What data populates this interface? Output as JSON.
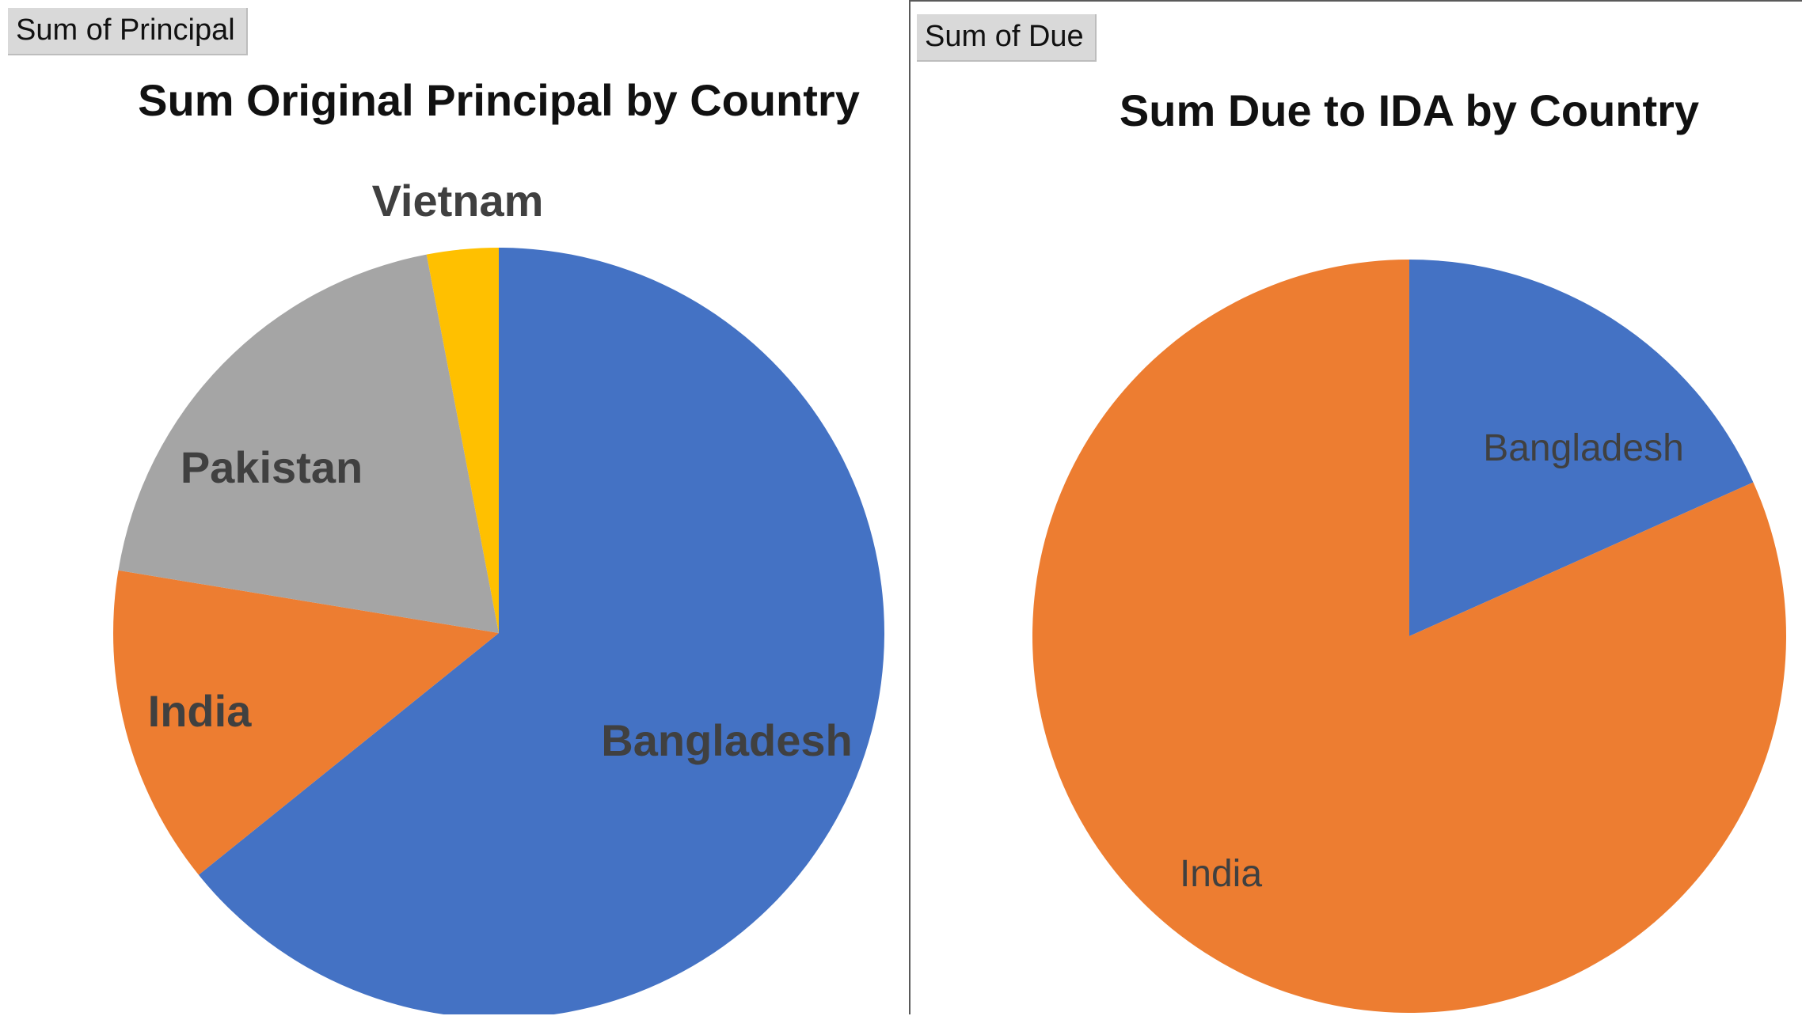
{
  "chart_data": [
    {
      "type": "pie",
      "field_button": "Sum of Principal",
      "title": "Sum Original Principal by Country",
      "start_angle_deg": 0,
      "direction": "clockwise",
      "slices": [
        {
          "label": "Bangladesh",
          "value": 64.2,
          "color": "#4472C4"
        },
        {
          "label": "India",
          "value": 13.4,
          "color": "#ED7D31"
        },
        {
          "label": "Pakistan",
          "value": 19.4,
          "color": "#A5A5A5"
        },
        {
          "label": "Vietnam",
          "value": 3.0,
          "color": "#FFC000"
        }
      ],
      "label_style": "bold"
    },
    {
      "type": "pie",
      "field_button": "Sum of Due",
      "title": "Sum Due to IDA by Country",
      "start_angle_deg": 0,
      "direction": "clockwise",
      "slices": [
        {
          "label": "Bangladesh",
          "value": 18.3,
          "color": "#4472C4"
        },
        {
          "label": "India",
          "value": 81.7,
          "color": "#ED7D31"
        }
      ],
      "label_style": "normal"
    }
  ]
}
